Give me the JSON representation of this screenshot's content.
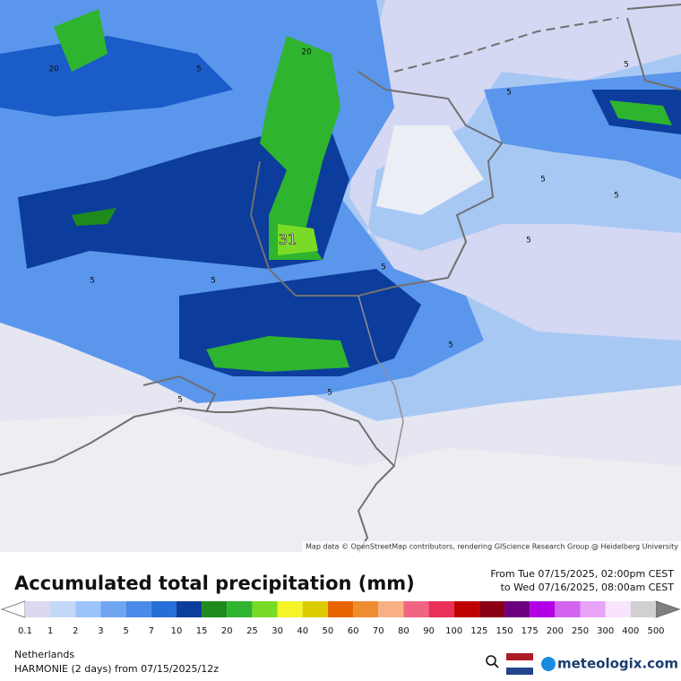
{
  "map": {
    "contour_labels": [
      "20",
      "5",
      "20",
      "5",
      "5",
      "5",
      "5",
      "5",
      "31",
      "5",
      "5",
      "5",
      "5",
      "5",
      "5"
    ],
    "attribution": "Map data © OpenStreetMap contributors, rendering GIScience Research Group @ Heidelberg University"
  },
  "legend": {
    "title": "Accumulated total precipitation (mm)",
    "from": "From Tue 07/15/2025, 02:00pm CEST",
    "to": "to Wed 07/16/2025, 08:00am CEST",
    "labels": [
      "0.1",
      "1",
      "2",
      "3",
      "5",
      "7",
      "10",
      "15",
      "20",
      "25",
      "30",
      "40",
      "50",
      "60",
      "70",
      "80",
      "90",
      "100",
      "125",
      "150",
      "175",
      "200",
      "250",
      "300",
      "400",
      "500"
    ],
    "colors": [
      "#dcd8f0",
      "#c4d8f8",
      "#9cc4f8",
      "#70a6f0",
      "#4a8ae8",
      "#286ed8",
      "#0c3c9c",
      "#1e8a1e",
      "#2eb42e",
      "#7ada28",
      "#f4f428",
      "#dccc00",
      "#e86400",
      "#f08c30",
      "#f8b084",
      "#f06484",
      "#e83058",
      "#c00000",
      "#8c0014",
      "#6c0080",
      "#b400e4",
      "#d264f0",
      "#e8a4f8",
      "#f8e4fc",
      "#d0d0d0"
    ]
  },
  "footer": {
    "region": "Netherlands",
    "model": "HARMONIE (2 days) from 07/15/2025/12z",
    "brand": "meteologix.com"
  }
}
